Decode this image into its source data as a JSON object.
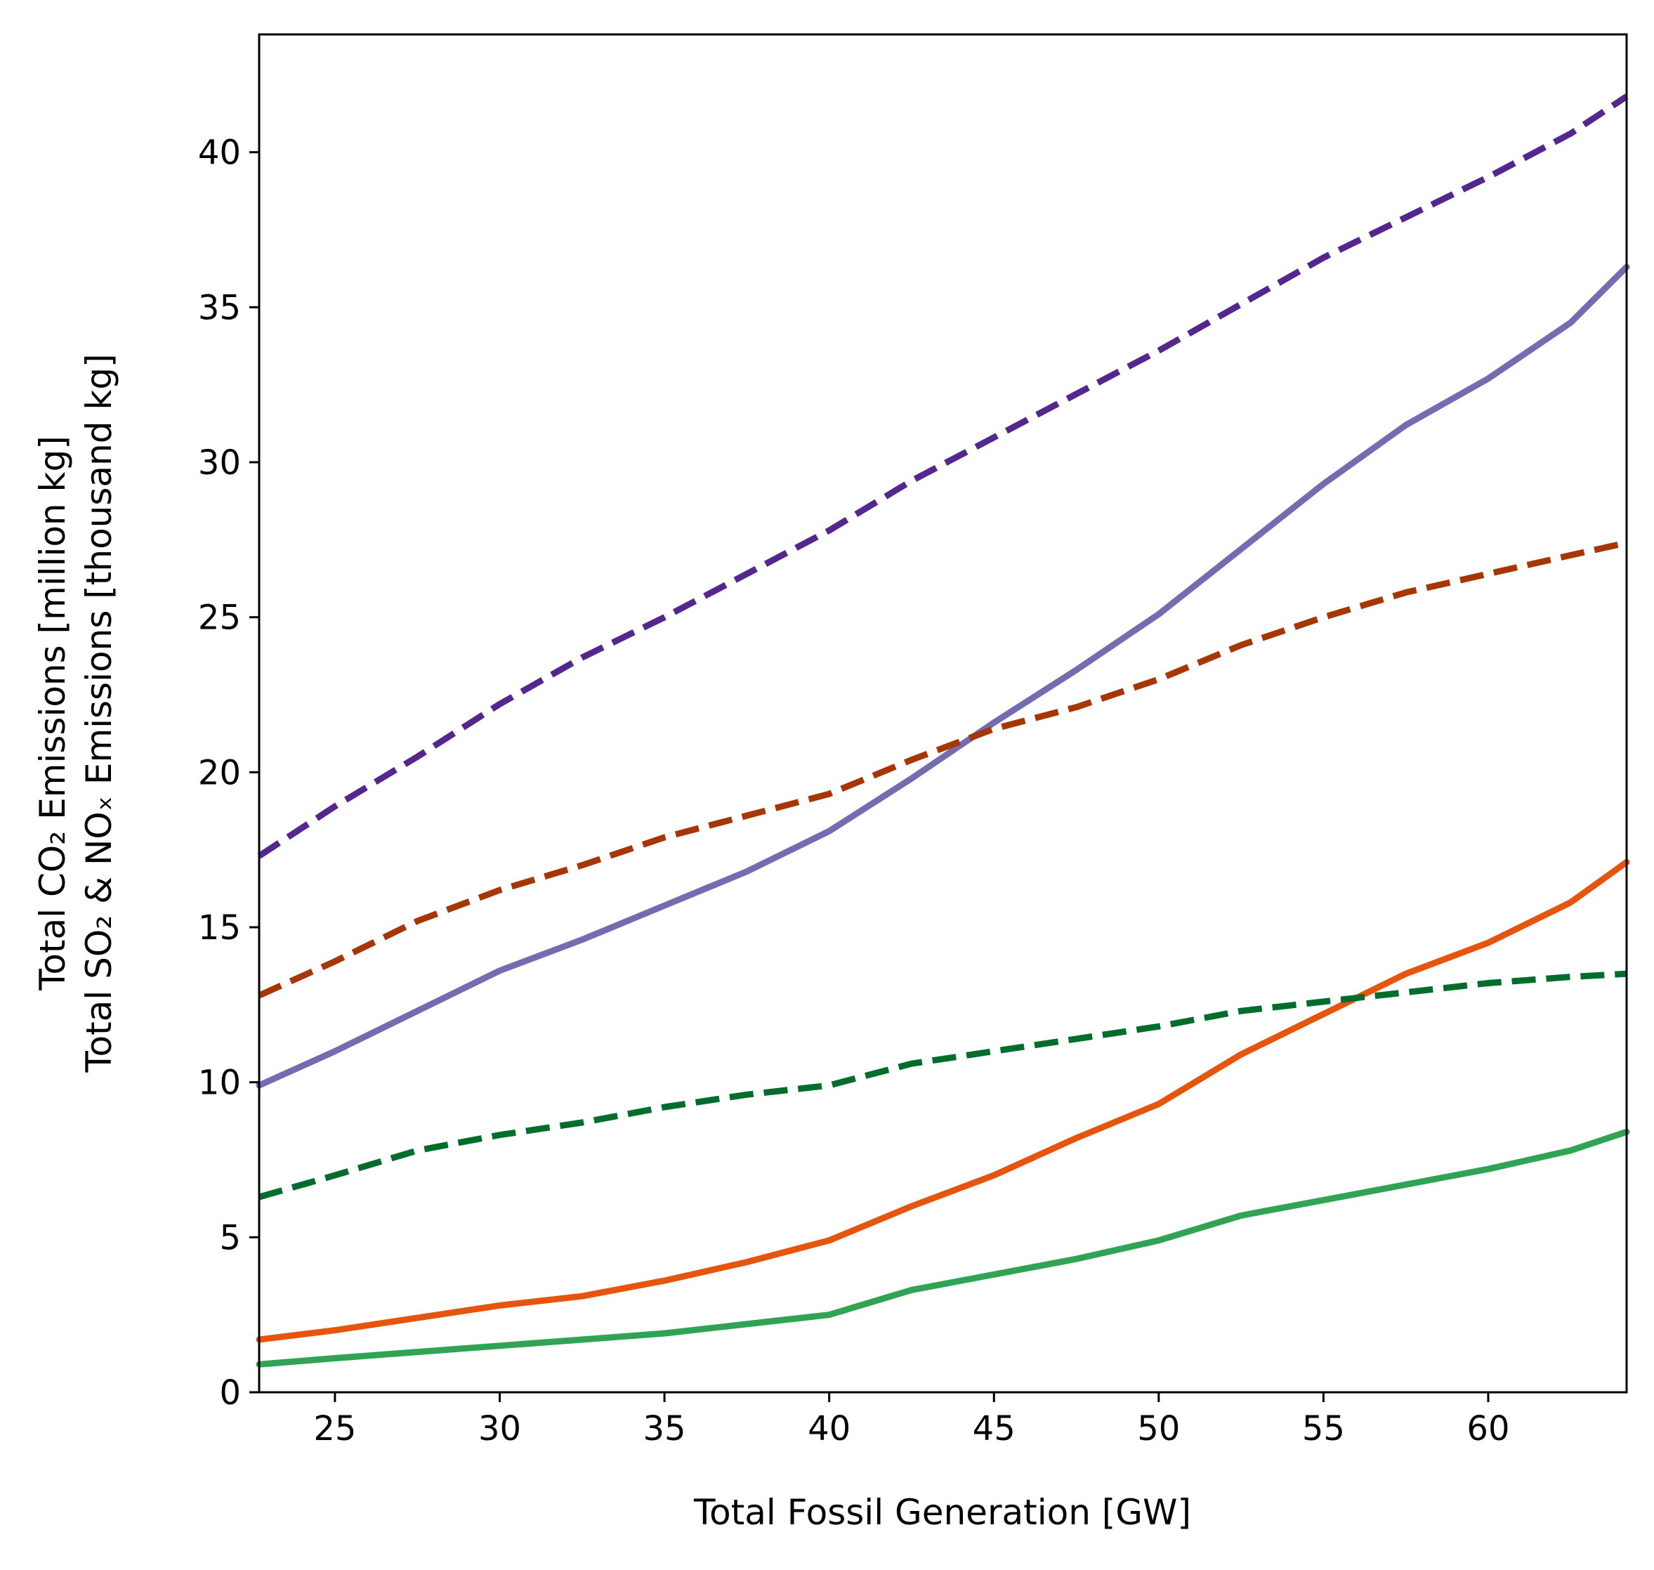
{
  "chart_data": {
    "type": "line",
    "title": "",
    "xlabel": "Total Fossil Generation [GW]",
    "ylabel_line1": "Total CO₂ Emissions [million kg]",
    "ylabel_line2": "Total SO₂ & NOₓ Emissions [thousand kg]",
    "xlim": [
      22.7,
      64.2
    ],
    "ylim": [
      0,
      43.8
    ],
    "xticks": [
      25,
      30,
      35,
      40,
      45,
      50,
      55,
      60
    ],
    "yticks": [
      0,
      5,
      10,
      15,
      20,
      25,
      30,
      35,
      40
    ],
    "grid": false,
    "series": [
      {
        "name": "series-purple-dashed",
        "color": "#54278f",
        "style": "dashed",
        "x": [
          22.7,
          25,
          27.5,
          30,
          32.5,
          35,
          37.5,
          40,
          42.5,
          45,
          47.5,
          50,
          52.5,
          55,
          57.5,
          60,
          62.5,
          64.2
        ],
        "y": [
          17.3,
          18.9,
          20.5,
          22.2,
          23.7,
          25.0,
          26.4,
          27.8,
          29.4,
          30.8,
          32.2,
          33.6,
          35.1,
          36.6,
          37.9,
          39.2,
          40.6,
          41.8
        ]
      },
      {
        "name": "series-purple-solid",
        "color": "#756bb1",
        "style": "solid",
        "x": [
          22.7,
          25,
          27.5,
          30,
          32.5,
          35,
          37.5,
          40,
          42.5,
          45,
          47.5,
          50,
          52.5,
          55,
          57.5,
          60,
          62.5,
          64.2
        ],
        "y": [
          9.9,
          11.0,
          12.3,
          13.6,
          14.6,
          15.7,
          16.8,
          18.1,
          19.8,
          21.6,
          23.3,
          25.1,
          27.2,
          29.3,
          31.2,
          32.7,
          34.5,
          36.3
        ]
      },
      {
        "name": "series-orange-dashed",
        "color": "#a63603",
        "style": "dashed",
        "x": [
          22.7,
          25,
          27.5,
          30,
          32.5,
          35,
          37.5,
          40,
          42.5,
          45,
          47.5,
          50,
          52.5,
          55,
          57.5,
          60,
          62.5,
          64.2
        ],
        "y": [
          12.8,
          13.9,
          15.2,
          16.2,
          17.0,
          17.9,
          18.6,
          19.3,
          20.4,
          21.4,
          22.1,
          23.0,
          24.1,
          25.0,
          25.8,
          26.4,
          27.0,
          27.4
        ]
      },
      {
        "name": "series-orange-solid",
        "color": "#e6550d",
        "style": "solid",
        "x": [
          22.7,
          25,
          27.5,
          30,
          32.5,
          35,
          37.5,
          40,
          42.5,
          45,
          47.5,
          50,
          52.5,
          55,
          57.5,
          60,
          62.5,
          64.2
        ],
        "y": [
          1.7,
          2.0,
          2.4,
          2.8,
          3.1,
          3.6,
          4.2,
          4.9,
          6.0,
          7.0,
          8.2,
          9.3,
          10.9,
          12.2,
          13.5,
          14.5,
          15.8,
          17.1
        ]
      },
      {
        "name": "series-green-dashed",
        "color": "#006d2c",
        "style": "dashed",
        "x": [
          22.7,
          25,
          27.5,
          30,
          32.5,
          35,
          37.5,
          40,
          42.5,
          45,
          47.5,
          50,
          52.5,
          55,
          57.5,
          60,
          62.5,
          64.2
        ],
        "y": [
          6.3,
          7.0,
          7.8,
          8.3,
          8.7,
          9.2,
          9.6,
          9.9,
          10.6,
          11.0,
          11.4,
          11.8,
          12.3,
          12.6,
          12.9,
          13.2,
          13.4,
          13.5
        ]
      },
      {
        "name": "series-green-solid",
        "color": "#31a354",
        "style": "solid",
        "x": [
          22.7,
          25,
          27.5,
          30,
          32.5,
          35,
          37.5,
          40,
          42.5,
          45,
          47.5,
          50,
          52.5,
          55,
          57.5,
          60,
          62.5,
          64.2
        ],
        "y": [
          0.9,
          1.1,
          1.3,
          1.5,
          1.7,
          1.9,
          2.2,
          2.5,
          3.3,
          3.8,
          4.3,
          4.9,
          5.7,
          6.2,
          6.7,
          7.2,
          7.8,
          8.4
        ]
      }
    ]
  }
}
